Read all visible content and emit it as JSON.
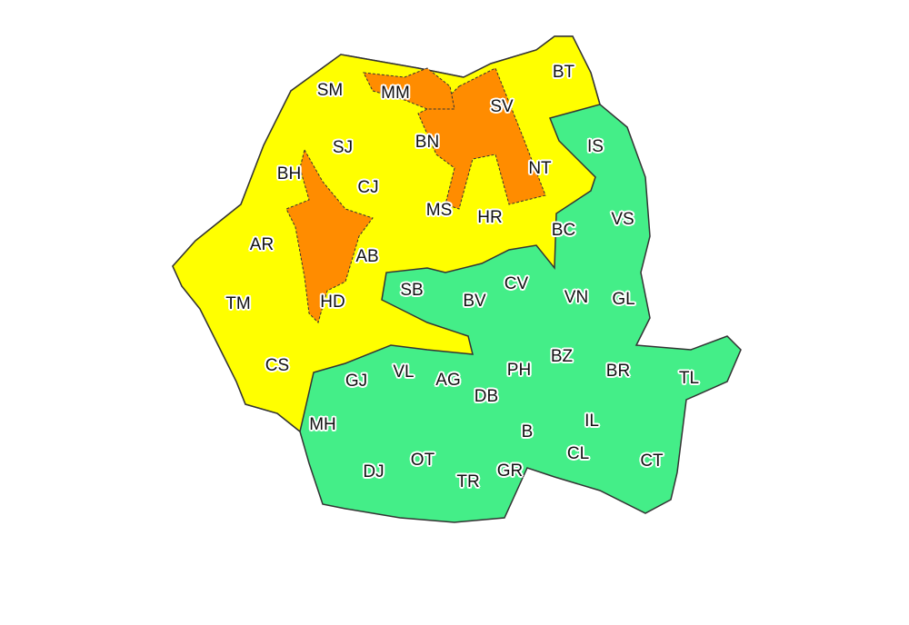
{
  "colors": {
    "yellow": "#ffff00",
    "orange": "#ff8c00",
    "green": "#44ee88",
    "border": "#333333"
  },
  "counties": [
    {
      "code": "SM",
      "level": "yellow"
    },
    {
      "code": "MM",
      "level": "orange"
    },
    {
      "code": "BT",
      "level": "yellow"
    },
    {
      "code": "SV",
      "level": "orange"
    },
    {
      "code": "SJ",
      "level": "yellow"
    },
    {
      "code": "BN",
      "level": "yellow"
    },
    {
      "code": "IS",
      "level": "green"
    },
    {
      "code": "BH",
      "level": "yellow"
    },
    {
      "code": "CJ",
      "level": "yellow"
    },
    {
      "code": "NT",
      "level": "orange"
    },
    {
      "code": "MS",
      "level": "yellow"
    },
    {
      "code": "HR",
      "level": "yellow"
    },
    {
      "code": "VS",
      "level": "green"
    },
    {
      "code": "BC",
      "level": "green"
    },
    {
      "code": "AR",
      "level": "yellow"
    },
    {
      "code": "AB",
      "level": "orange"
    },
    {
      "code": "SB",
      "level": "green"
    },
    {
      "code": "CV",
      "level": "green"
    },
    {
      "code": "BV",
      "level": "green"
    },
    {
      "code": "VN",
      "level": "green"
    },
    {
      "code": "GL",
      "level": "green"
    },
    {
      "code": "TM",
      "level": "yellow"
    },
    {
      "code": "HD",
      "level": "yellow"
    },
    {
      "code": "CS",
      "level": "yellow"
    },
    {
      "code": "GJ",
      "level": "green"
    },
    {
      "code": "VL",
      "level": "green"
    },
    {
      "code": "AG",
      "level": "green"
    },
    {
      "code": "PH",
      "level": "green"
    },
    {
      "code": "BZ",
      "level": "green"
    },
    {
      "code": "BR",
      "level": "green"
    },
    {
      "code": "TL",
      "level": "green"
    },
    {
      "code": "DB",
      "level": "green"
    },
    {
      "code": "MH",
      "level": "green"
    },
    {
      "code": "IL",
      "level": "green"
    },
    {
      "code": "B",
      "level": "green"
    },
    {
      "code": "DJ",
      "level": "green"
    },
    {
      "code": "OT",
      "level": "green"
    },
    {
      "code": "TR",
      "level": "green"
    },
    {
      "code": "GR",
      "level": "green"
    },
    {
      "code": "CL",
      "level": "green"
    },
    {
      "code": "CT",
      "level": "green"
    }
  ]
}
